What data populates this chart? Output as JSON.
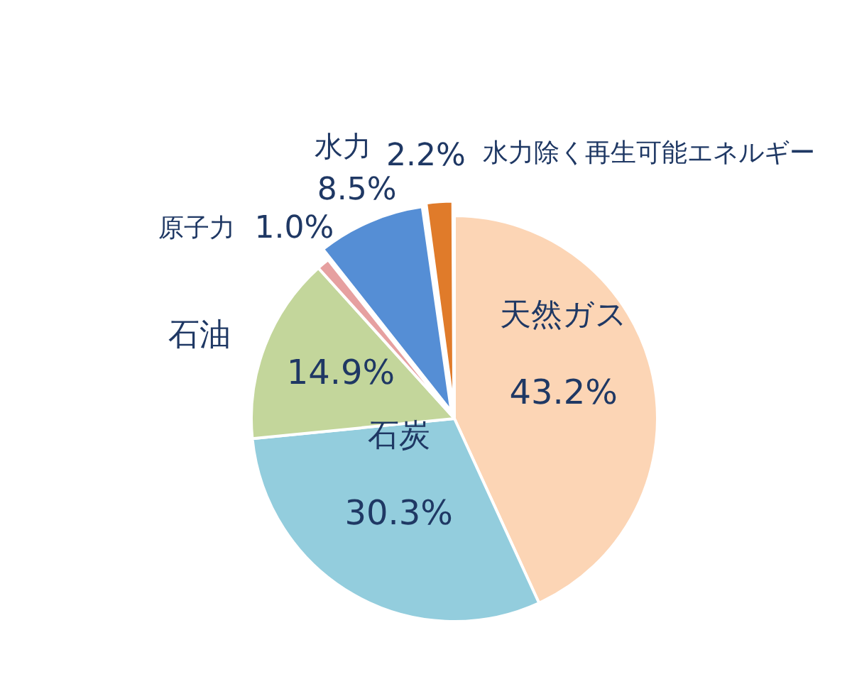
{
  "chart_data": {
    "type": "pie",
    "categories": [
      "天然ガス",
      "石炭",
      "石油",
      "原子力",
      "水力",
      "水力除く再生可能エネルギー"
    ],
    "values": [
      43.2,
      30.3,
      14.9,
      1.0,
      8.5,
      2.2
    ],
    "value_labels": [
      "43.2%",
      "30.3%",
      "14.9%",
      "1.0%",
      "8.5%",
      "2.2%"
    ],
    "colors": [
      "#fcd5b5",
      "#93cddd",
      "#c3d69b",
      "#e6a0a0",
      "#558ed5",
      "#e07b2a"
    ],
    "legend": false
  }
}
